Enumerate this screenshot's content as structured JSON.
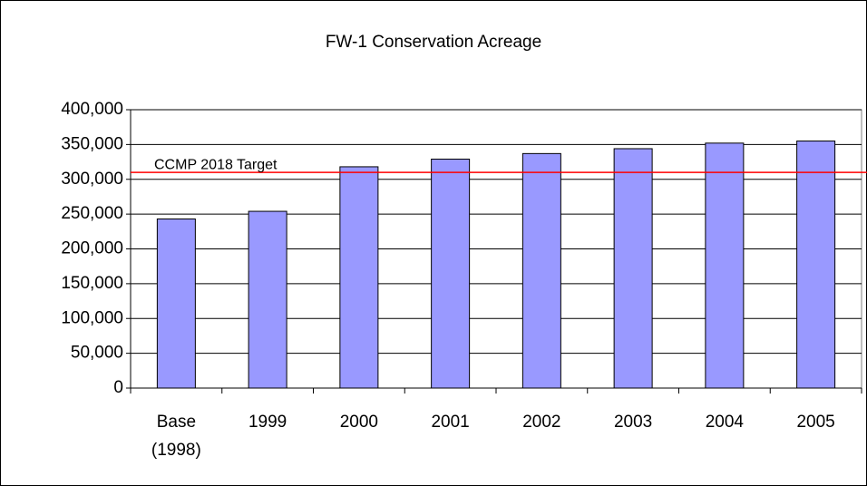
{
  "chart_data": {
    "type": "bar",
    "title": "FW-1 Conservation Acreage",
    "categories": [
      "Base (1998)",
      "1999",
      "2000",
      "2001",
      "2002",
      "2003",
      "2004",
      "2005"
    ],
    "values": [
      243000,
      254000,
      318000,
      329000,
      337000,
      344000,
      352000,
      355000
    ],
    "color": "#9999ff",
    "ylim": [
      0,
      400000
    ],
    "yticks": [
      0,
      {
        "value": 50000,
        "label": "50,000"
      },
      {
        "value": 100000,
        "label": "100,000"
      },
      {
        "value": 150000,
        "label": "150,000"
      },
      {
        "value": 200000,
        "label": "200,000"
      },
      {
        "value": 250000,
        "label": "250,000"
      },
      {
        "value": 300000,
        "label": "300,000"
      },
      {
        "value": 350000,
        "label": "350,000"
      },
      {
        "value": 400000,
        "label": "400,000"
      }
    ],
    "grid": true,
    "target": {
      "label": "CCMP 2018 Target",
      "value": 310000,
      "color": "#ff0000"
    }
  }
}
